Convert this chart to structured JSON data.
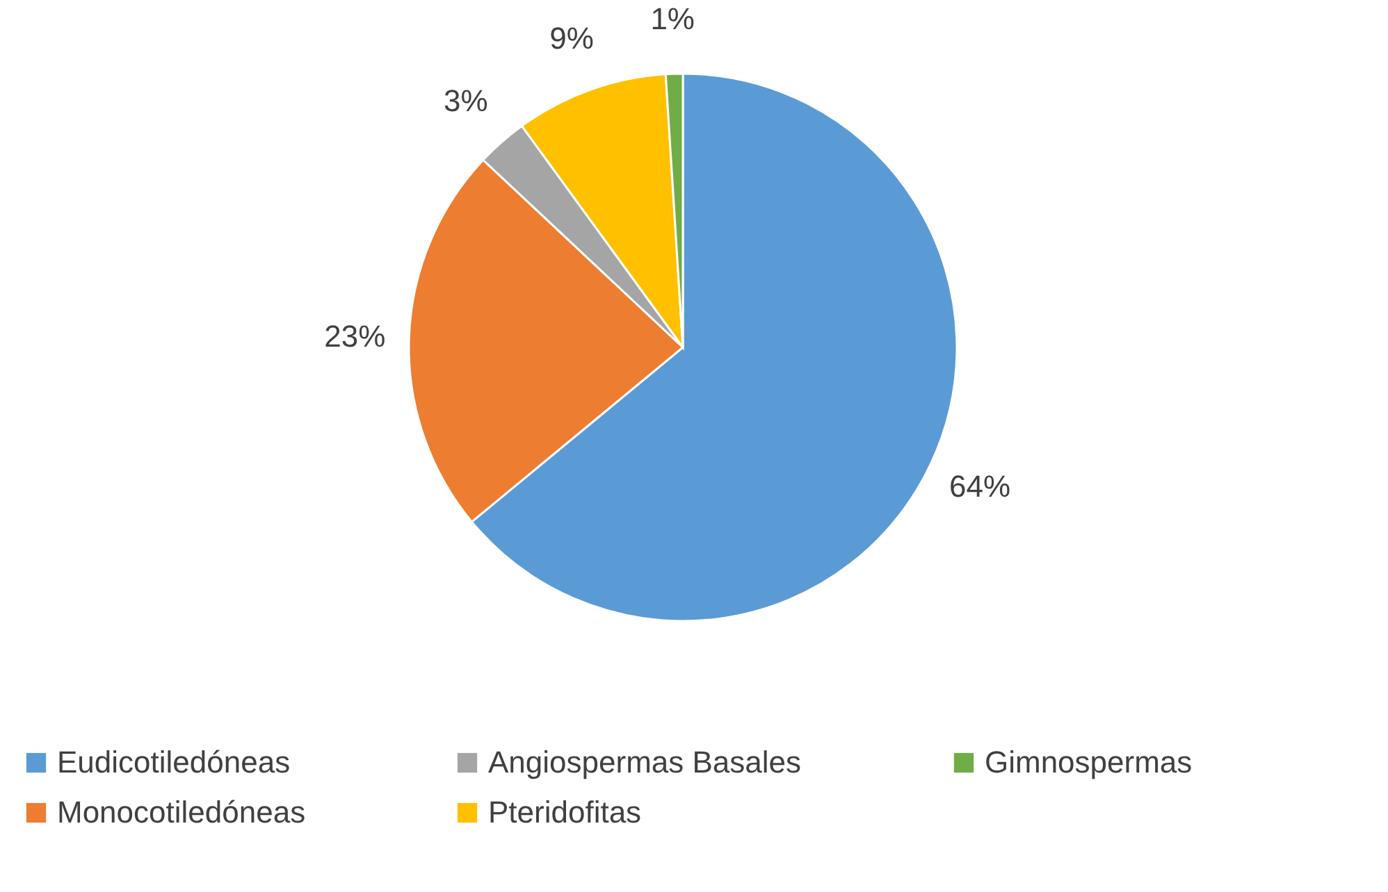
{
  "chart_data": {
    "type": "pie",
    "categories": [
      "Eudicotiledóneas",
      "Monocotiledóneas",
      "Angiospermas Basales",
      "Pteridofitas",
      "Gimnospermas"
    ],
    "values": [
      64,
      23,
      3,
      9,
      1
    ],
    "colors": [
      "#5b9bd5",
      "#ed7d31",
      "#a5a5a5",
      "#ffc000",
      "#70ad47"
    ],
    "value_labels": [
      "64%",
      "23%",
      "3%",
      "9%",
      "1%"
    ],
    "legend": "bottom"
  }
}
